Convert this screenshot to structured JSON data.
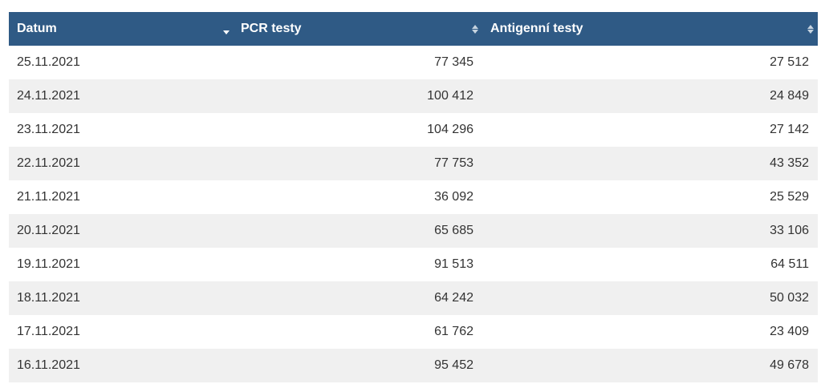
{
  "table": {
    "columns": [
      {
        "label": "Datum",
        "sort": "descending"
      },
      {
        "label": "PCR testy",
        "sort": "none"
      },
      {
        "label": "Antigenní testy",
        "sort": "none"
      }
    ],
    "rows": [
      {
        "date": "25.11.2021",
        "pcr": "77 345",
        "antigen": "27 512"
      },
      {
        "date": "24.11.2021",
        "pcr": "100 412",
        "antigen": "24 849"
      },
      {
        "date": "23.11.2021",
        "pcr": "104 296",
        "antigen": "27 142"
      },
      {
        "date": "22.11.2021",
        "pcr": "77 753",
        "antigen": "43 352"
      },
      {
        "date": "21.11.2021",
        "pcr": "36 092",
        "antigen": "25 529"
      },
      {
        "date": "20.11.2021",
        "pcr": "65 685",
        "antigen": "33 106"
      },
      {
        "date": "19.11.2021",
        "pcr": "91 513",
        "antigen": "64 511"
      },
      {
        "date": "18.11.2021",
        "pcr": "64 242",
        "antigen": "50 032"
      },
      {
        "date": "17.11.2021",
        "pcr": "61 762",
        "antigen": "23 409"
      },
      {
        "date": "16.11.2021",
        "pcr": "95 452",
        "antigen": "49 678"
      }
    ]
  },
  "colors": {
    "header_bg": "#2f5a85",
    "header_text": "#ffffff",
    "row_alt_bg": "#f0f0f0",
    "text": "#333333"
  },
  "icons": {
    "date_sort": "sort-down-icon",
    "pcr_sort": "sort-both-icon",
    "antigen_sort": "sort-both-icon"
  }
}
